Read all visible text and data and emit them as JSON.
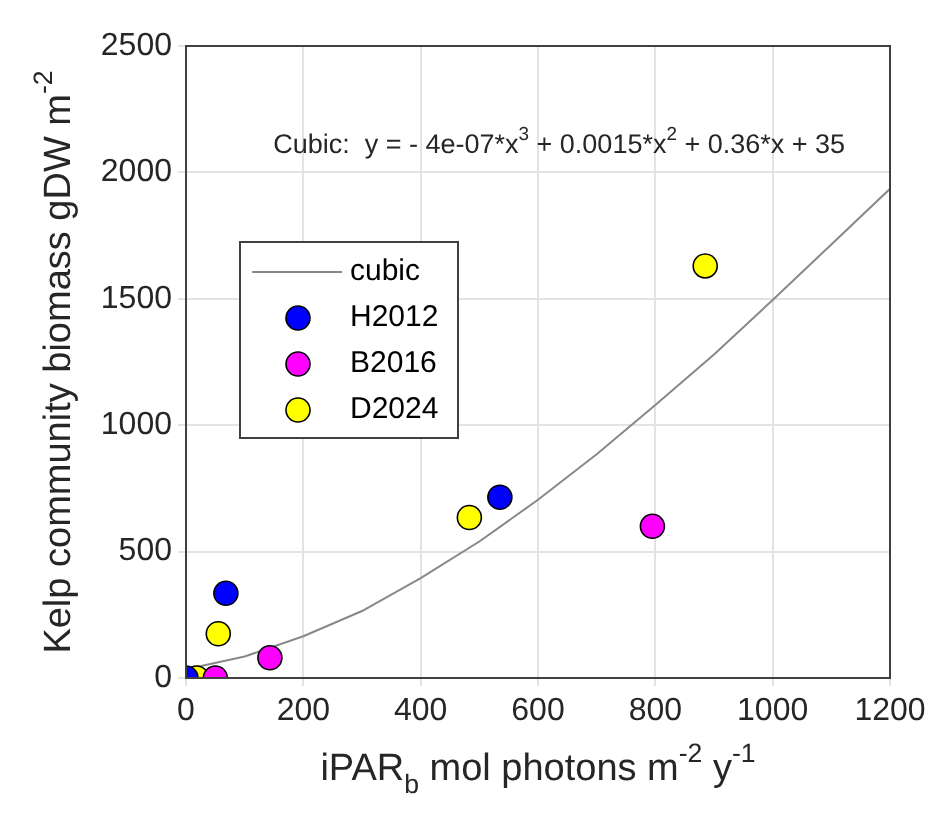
{
  "chart_data": {
    "type": "scatter",
    "xlabel": "iPAR$_{b}$ mol photons m$^{-2}$ y$^{-1}$",
    "ylabel": "Kelp community biomass gDW m$^{-2}$",
    "annotations": [
      "Cubic:  y = - 4e-07*x$^{3}$ + 0.0015*x$^{2}$ + 0.36*x + 35"
    ],
    "series": [
      {
        "name": "cubic",
        "type": "line",
        "color": "#888888",
        "marker": "none",
        "x": [
          0,
          100,
          200,
          300,
          400,
          500,
          600,
          700,
          800,
          900,
          1000,
          1100,
          1200
        ],
        "values": [
          35,
          85,
          165,
          265,
          395,
          540,
          705,
          885,
          1080,
          1280,
          1495,
          1715,
          1935
        ]
      },
      {
        "name": "H2012",
        "color": "#0000ff",
        "x": [
          0,
          68,
          535
        ],
        "values": [
          0,
          335,
          715
        ]
      },
      {
        "name": "B2016",
        "color": "#ff00ff",
        "x": [
          50,
          143,
          795
        ],
        "values": [
          0,
          80,
          600
        ]
      },
      {
        "name": "D2024",
        "color": "#ffff00",
        "x": [
          18,
          55,
          483,
          885
        ],
        "values": [
          0,
          175,
          635,
          1630
        ]
      }
    ],
    "xlim": [
      0,
      1200
    ],
    "xticks": [
      0,
      200,
      400,
      600,
      800,
      1000,
      1200
    ],
    "ylim": [
      0,
      2500
    ],
    "yticks": [
      0,
      500,
      1000,
      1500,
      2000,
      2500
    ],
    "grid": true,
    "legend": "top left",
    "marker": "circle"
  }
}
